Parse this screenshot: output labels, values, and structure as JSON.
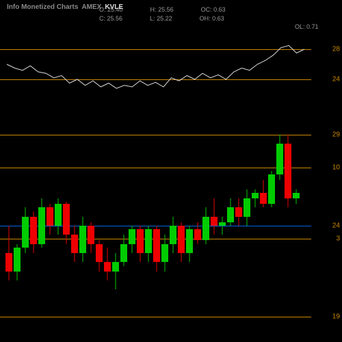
{
  "header": {
    "title_prefix": "Info Monetized Charts",
    "exchange": "AMEX",
    "symbol": "KVLE"
  },
  "stats": {
    "O": "25.40",
    "H": "25.56",
    "OC": "0.63",
    "C": "25.56",
    "L": "25.22",
    "OH": "0.63",
    "OL": "0.71"
  },
  "upper_chart": {
    "type": "line",
    "ylim": [
      20,
      30
    ],
    "gridlines": [
      {
        "value": 28,
        "color": "#cc8800",
        "label": "28"
      },
      {
        "value": 24,
        "color": "#cc8800",
        "label": "24"
      }
    ],
    "line_color": "#dddddd",
    "points": [
      26,
      25.5,
      25.2,
      25.8,
      25,
      24.8,
      24.2,
      24.5,
      23.5,
      24,
      23.2,
      23.8,
      23,
      23.5,
      22.8,
      23.2,
      23,
      23.8,
      23.2,
      23.6,
      23,
      24.2,
      23.8,
      24.5,
      24,
      24.8,
      24.2,
      24.6,
      24,
      25,
      25.5,
      25.2,
      26,
      26.5,
      27.2,
      28.2,
      28.5,
      27.5,
      28
    ]
  },
  "lower_chart": {
    "type": "candlestick",
    "ylim": [
      18,
      30
    ],
    "gridlines": [
      {
        "value": 29,
        "color": "#cc8800",
        "label": "29",
        "label_color": "#cc8800"
      },
      {
        "value": 27.2,
        "color": "#cc8800",
        "label": "10",
        "label_color": "#cc8800"
      },
      {
        "value": 24,
        "color": "#0066dd",
        "label": "24",
        "label_color": "#cc8800"
      },
      {
        "value": 23.3,
        "color": "#cc8800",
        "label": "3",
        "label_color": "#cc8800"
      },
      {
        "value": 19,
        "color": "#cc8800",
        "label": "19",
        "label_color": "#cc8800"
      }
    ],
    "colors": {
      "up": "#00cc00",
      "down": "#ee0000"
    },
    "candle_width": 10,
    "candle_spacing": 12,
    "candles": [
      {
        "o": 22.5,
        "h": 24,
        "l": 21,
        "c": 21.5
      },
      {
        "o": 21.5,
        "h": 23,
        "l": 21,
        "c": 22.8
      },
      {
        "o": 22.8,
        "h": 25,
        "l": 22.5,
        "c": 24.5
      },
      {
        "o": 24.5,
        "h": 24.8,
        "l": 22.5,
        "c": 23
      },
      {
        "o": 23,
        "h": 25.5,
        "l": 22.8,
        "c": 25
      },
      {
        "o": 25,
        "h": 25.2,
        "l": 23.5,
        "c": 24
      },
      {
        "o": 24,
        "h": 25.5,
        "l": 23.5,
        "c": 25.2
      },
      {
        "o": 25.2,
        "h": 25.3,
        "l": 23,
        "c": 23.5
      },
      {
        "o": 23.5,
        "h": 24,
        "l": 22,
        "c": 22.5
      },
      {
        "o": 22.5,
        "h": 24.5,
        "l": 22,
        "c": 24
      },
      {
        "o": 24,
        "h": 24.2,
        "l": 22.5,
        "c": 23
      },
      {
        "o": 23,
        "h": 23.2,
        "l": 21.5,
        "c": 22
      },
      {
        "o": 22,
        "h": 22.8,
        "l": 21,
        "c": 21.5
      },
      {
        "o": 21.5,
        "h": 22.5,
        "l": 20.5,
        "c": 22
      },
      {
        "o": 22,
        "h": 23.5,
        "l": 21.8,
        "c": 23
      },
      {
        "o": 23,
        "h": 24,
        "l": 22.5,
        "c": 23.8
      },
      {
        "o": 23.8,
        "h": 24,
        "l": 22,
        "c": 22.5
      },
      {
        "o": 22.5,
        "h": 24,
        "l": 22,
        "c": 23.8
      },
      {
        "o": 23.8,
        "h": 24,
        "l": 21.5,
        "c": 22
      },
      {
        "o": 22,
        "h": 23.5,
        "l": 21.5,
        "c": 23
      },
      {
        "o": 23,
        "h": 24.5,
        "l": 22.5,
        "c": 24
      },
      {
        "o": 24,
        "h": 24.2,
        "l": 22,
        "c": 22.5
      },
      {
        "o": 22.5,
        "h": 24,
        "l": 22,
        "c": 23.8
      },
      {
        "o": 23.8,
        "h": 24.2,
        "l": 23,
        "c": 23.2
      },
      {
        "o": 23.2,
        "h": 25,
        "l": 23,
        "c": 24.5
      },
      {
        "o": 24.5,
        "h": 25.5,
        "l": 23.5,
        "c": 24
      },
      {
        "o": 24,
        "h": 24.5,
        "l": 23.5,
        "c": 24.2
      },
      {
        "o": 24.2,
        "h": 25.5,
        "l": 24,
        "c": 25
      },
      {
        "o": 25,
        "h": 25.5,
        "l": 24,
        "c": 24.5
      },
      {
        "o": 24.5,
        "h": 26,
        "l": 24,
        "c": 25.5
      },
      {
        "o": 25.5,
        "h": 26,
        "l": 25,
        "c": 25.8
      },
      {
        "o": 25.8,
        "h": 26.5,
        "l": 25,
        "c": 25.2
      },
      {
        "o": 25.2,
        "h": 27,
        "l": 25,
        "c": 26.8
      },
      {
        "o": 26.8,
        "h": 29,
        "l": 26.5,
        "c": 28.5
      },
      {
        "o": 28.5,
        "h": 29,
        "l": 25,
        "c": 25.5
      },
      {
        "o": 25.5,
        "h": 26,
        "l": 25.2,
        "c": 25.8
      }
    ]
  },
  "background_color": "#000000"
}
